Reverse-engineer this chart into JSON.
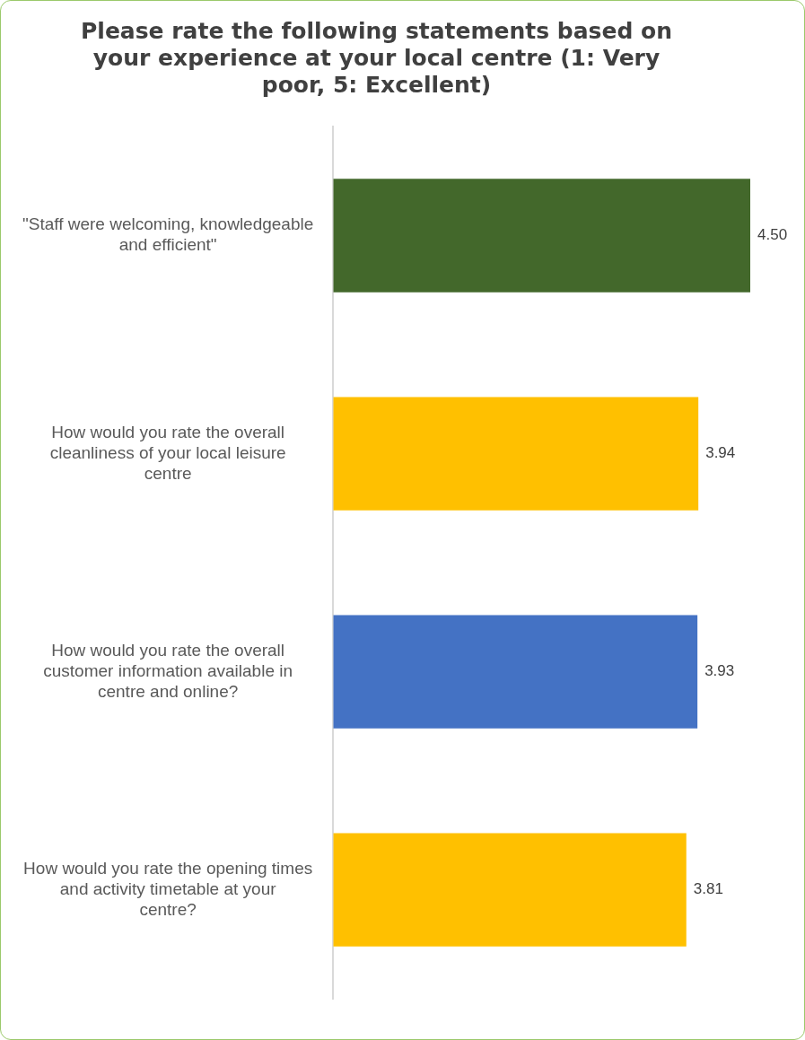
{
  "chart_data": {
    "type": "bar",
    "orientation": "horizontal",
    "title": "Please rate the following statements based on your experience at your local centre (1: Very poor, 5: Excellent)",
    "categories": [
      "\"Staff were welcoming, knowledgeable and efficient\"",
      "How would you rate the overall cleanliness of your local leisure centre",
      "How would you rate the overall customer information available in centre and online?",
      "How would you rate the opening times and activity timetable at your centre?"
    ],
    "values": [
      4.5,
      3.94,
      3.93,
      3.81
    ],
    "colors": [
      "#43682b",
      "#ffc000",
      "#4472c4",
      "#ffc000"
    ],
    "value_labels": [
      "4.50",
      "3.94",
      "3.93",
      "3.81"
    ],
    "tick_labels": "y",
    "grid": false,
    "legend": false
  }
}
